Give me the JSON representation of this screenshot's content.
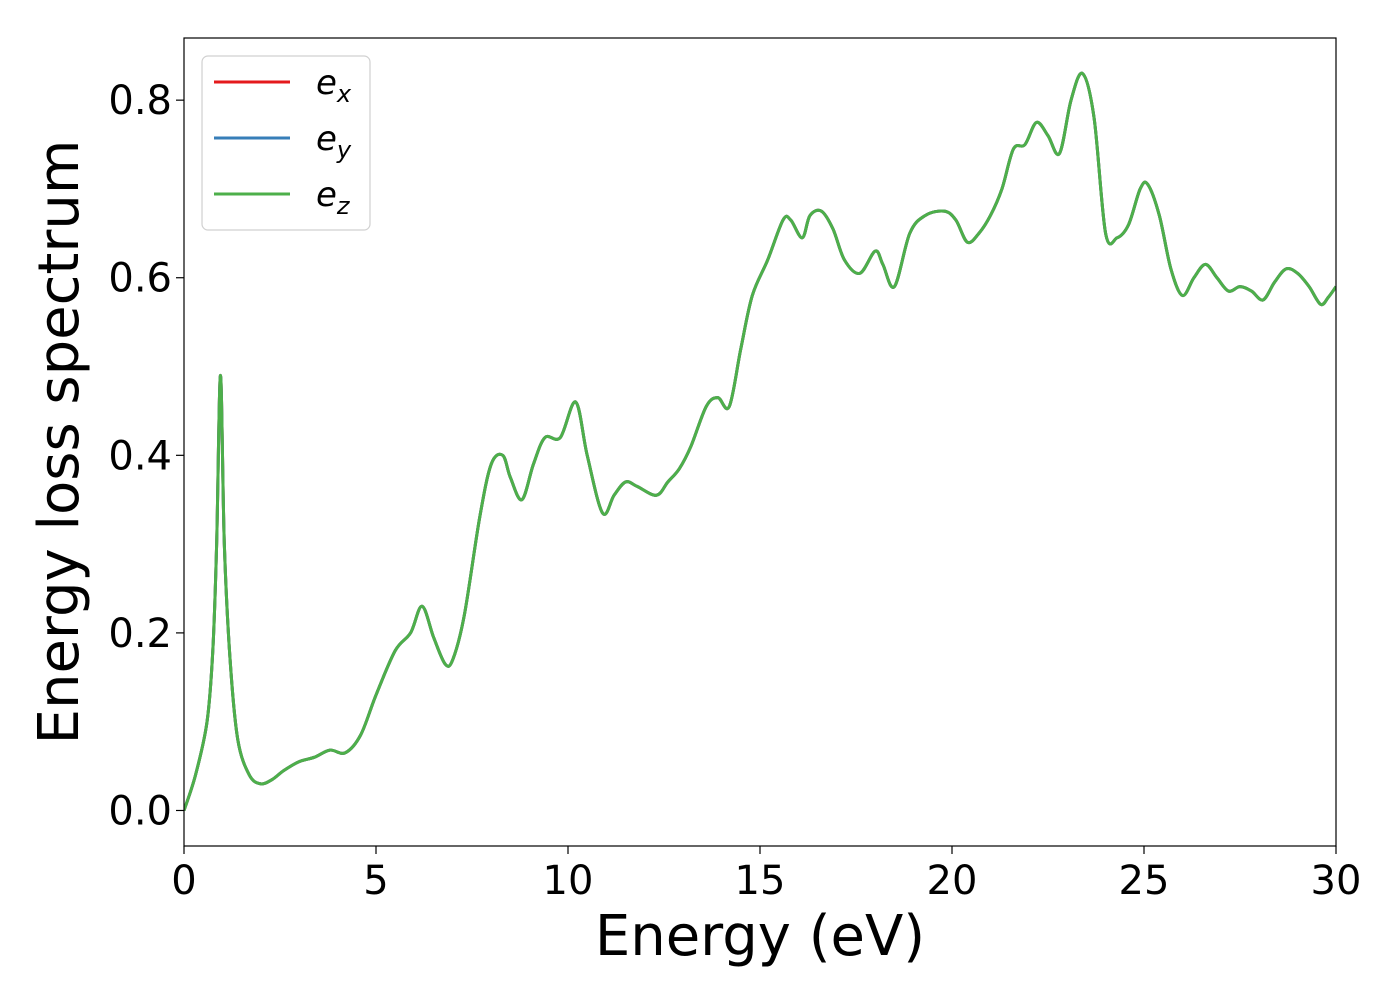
{
  "chart_data": {
    "type": "line",
    "title": "",
    "xlabel": "Energy (eV)",
    "ylabel": "Energy loss spectrum",
    "xlim": [
      0,
      30
    ],
    "ylim": [
      -0.04,
      0.87
    ],
    "xticks": [
      0,
      5,
      10,
      15,
      20,
      25,
      30
    ],
    "xtick_labels": [
      "0",
      "5",
      "10",
      "15",
      "20",
      "25",
      "30"
    ],
    "yticks": [
      0.0,
      0.2,
      0.4,
      0.6,
      0.8
    ],
    "ytick_labels": [
      "0.0",
      "0.2",
      "0.4",
      "0.6",
      "0.8"
    ],
    "grid": false,
    "legend_position": "upper-left",
    "series": [
      {
        "name": "e_x",
        "label_base": "e",
        "label_sub": "x",
        "color": "#e41a1c"
      },
      {
        "name": "e_y",
        "label_base": "e",
        "label_sub": "y",
        "color": "#377eb8"
      },
      {
        "name": "e_z",
        "label_base": "e",
        "label_sub": "z",
        "color": "#4daf4a"
      }
    ],
    "x": [
      0,
      0.3,
      0.6,
      0.75,
      0.85,
      0.95,
      1.05,
      1.2,
      1.4,
      1.7,
      2.0,
      2.3,
      2.6,
      3.0,
      3.4,
      3.8,
      4.2,
      4.6,
      5.0,
      5.5,
      5.9,
      6.2,
      6.5,
      6.8,
      7.0,
      7.3,
      7.7,
      8.0,
      8.3,
      8.5,
      8.8,
      9.1,
      9.4,
      9.8,
      10.2,
      10.5,
      10.9,
      11.2,
      11.5,
      11.8,
      12.3,
      12.6,
      12.9,
      13.2,
      13.6,
      13.9,
      14.2,
      14.5,
      14.8,
      15.2,
      15.6,
      15.8,
      16.1,
      16.3,
      16.6,
      16.9,
      17.2,
      17.6,
      18.0,
      18.2,
      18.5,
      18.9,
      19.3,
      19.8,
      20.1,
      20.4,
      20.7,
      21.0,
      21.3,
      21.6,
      21.9,
      22.2,
      22.5,
      22.8,
      23.1,
      23.4,
      23.7,
      24.0,
      24.3,
      24.6,
      24.9,
      25.1,
      25.4,
      25.7,
      26.0,
      26.3,
      26.6,
      26.9,
      27.2,
      27.5,
      27.8,
      28.1,
      28.4,
      28.7,
      29.0,
      29.3,
      29.6,
      29.8,
      30.0
    ],
    "values": [
      0.0,
      0.04,
      0.1,
      0.18,
      0.3,
      0.49,
      0.3,
      0.17,
      0.08,
      0.04,
      0.03,
      0.035,
      0.045,
      0.055,
      0.06,
      0.068,
      0.065,
      0.085,
      0.13,
      0.18,
      0.2,
      0.23,
      0.195,
      0.165,
      0.17,
      0.22,
      0.33,
      0.39,
      0.4,
      0.375,
      0.35,
      0.39,
      0.42,
      0.42,
      0.46,
      0.4,
      0.335,
      0.355,
      0.37,
      0.365,
      0.355,
      0.37,
      0.385,
      0.41,
      0.455,
      0.465,
      0.455,
      0.52,
      0.58,
      0.62,
      0.665,
      0.665,
      0.645,
      0.67,
      0.675,
      0.655,
      0.62,
      0.605,
      0.63,
      0.615,
      0.59,
      0.65,
      0.67,
      0.675,
      0.665,
      0.64,
      0.65,
      0.67,
      0.7,
      0.745,
      0.75,
      0.775,
      0.76,
      0.74,
      0.8,
      0.83,
      0.78,
      0.65,
      0.645,
      0.66,
      0.7,
      0.705,
      0.67,
      0.61,
      0.58,
      0.6,
      0.615,
      0.6,
      0.585,
      0.59,
      0.585,
      0.575,
      0.595,
      0.61,
      0.605,
      0.59,
      0.57,
      0.578,
      0.59
    ]
  }
}
